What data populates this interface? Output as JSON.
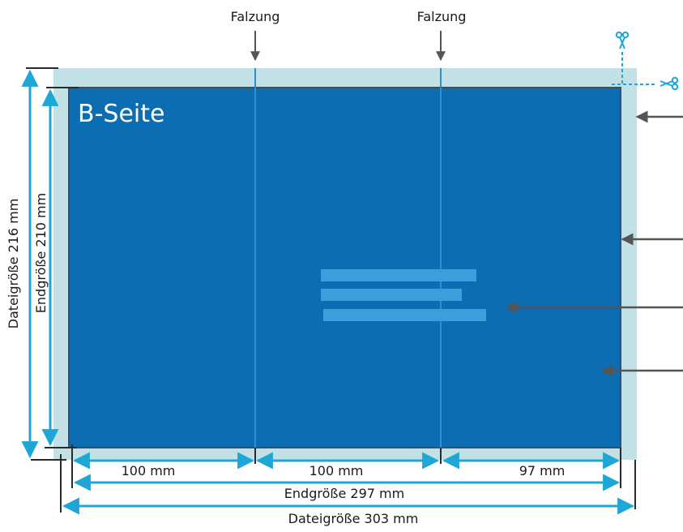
{
  "side_label": "B-Seite",
  "fold_labels": [
    "Falzung",
    "Falzung"
  ],
  "panel_widths": [
    "100 mm",
    "100 mm",
    "97 mm"
  ],
  "end_width_label": "Endgröße 297 mm",
  "file_width_label": "Dateigröße 303 mm",
  "end_height_label": "Endgröße 210 mm",
  "file_height_label": "Dateigröße 216 mm",
  "colors": {
    "bleed": "#c1e1e6",
    "trim_fill": "#0c6db2",
    "fold_line": "#2a8fd4",
    "text_placeholder": "#3a9fdb",
    "dimension": "#1ea6d6",
    "arrow": "#555555",
    "scissors": "#1ea6d6"
  },
  "icons": [
    "scissors-icon",
    "scissors-icon"
  ]
}
